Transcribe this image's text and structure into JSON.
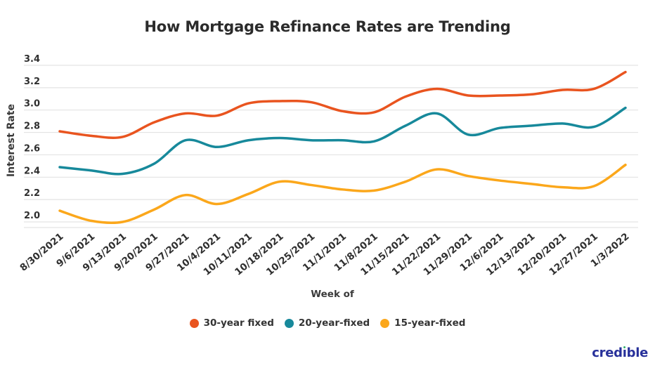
{
  "title": "How Mortgage Refinance Rates are Trending",
  "brand": {
    "logo_text": "credible",
    "logo_color": "#27309A",
    "logo_dot_color": "#2FAE6E"
  },
  "colors": {
    "background": "#FFFFFF",
    "grid": "#E3E3E3",
    "axis_baseline": "#E3E3E3",
    "tick_text": "#2F2F2F",
    "axis_title_text": "#3B3B3B",
    "title_text": "#2B2B2B",
    "legend_text": "#333333"
  },
  "chart_data": {
    "type": "line",
    "title": "How Mortgage Refinance Rates are Trending",
    "xlabel": "Week of",
    "ylabel": "Interest Rate",
    "x": [
      "8/30/2021",
      "9/6/2021",
      "9/13/2021",
      "9/20/2021",
      "9/27/2021",
      "10/4/2021",
      "10/11/2021",
      "10/18/2021",
      "10/25/2021",
      "11/1/2021",
      "11/8/2021",
      "11/15/2021",
      "11/22/2021",
      "11/29/2021",
      "12/6/2021",
      "12/13/2021",
      "12/20/2021",
      "12/27/2021",
      "1/3/2022"
    ],
    "y_ticks": [
      "3.4",
      "3.2",
      "3.0",
      "2.8",
      "2.6",
      "2.4",
      "2.2",
      "2.0"
    ],
    "ylim": [
      2.0,
      3.4
    ],
    "grid": "horizontal",
    "legend_position": "bottom",
    "line_smoothing": true,
    "x_tick_rotation_deg": 40,
    "series": [
      {
        "name": "30-year fixed",
        "color": "#E9541F",
        "values": [
          2.81,
          2.77,
          2.76,
          2.89,
          2.97,
          2.95,
          3.06,
          3.08,
          3.07,
          2.99,
          2.98,
          3.12,
          3.19,
          3.13,
          3.13,
          3.14,
          3.18,
          3.19,
          3.34
        ]
      },
      {
        "name": "20-year-fixed",
        "color": "#17899B",
        "values": [
          2.49,
          2.46,
          2.43,
          2.52,
          2.73,
          2.67,
          2.73,
          2.75,
          2.73,
          2.73,
          2.72,
          2.86,
          2.97,
          2.78,
          2.84,
          2.86,
          2.88,
          2.85,
          3.02
        ]
      },
      {
        "name": "15-year-fixed",
        "color": "#FBA71B",
        "values": [
          2.1,
          2.01,
          2.0,
          2.11,
          2.24,
          2.16,
          2.25,
          2.36,
          2.33,
          2.29,
          2.28,
          2.36,
          2.47,
          2.41,
          2.37,
          2.34,
          2.31,
          2.32,
          2.51
        ]
      }
    ]
  }
}
